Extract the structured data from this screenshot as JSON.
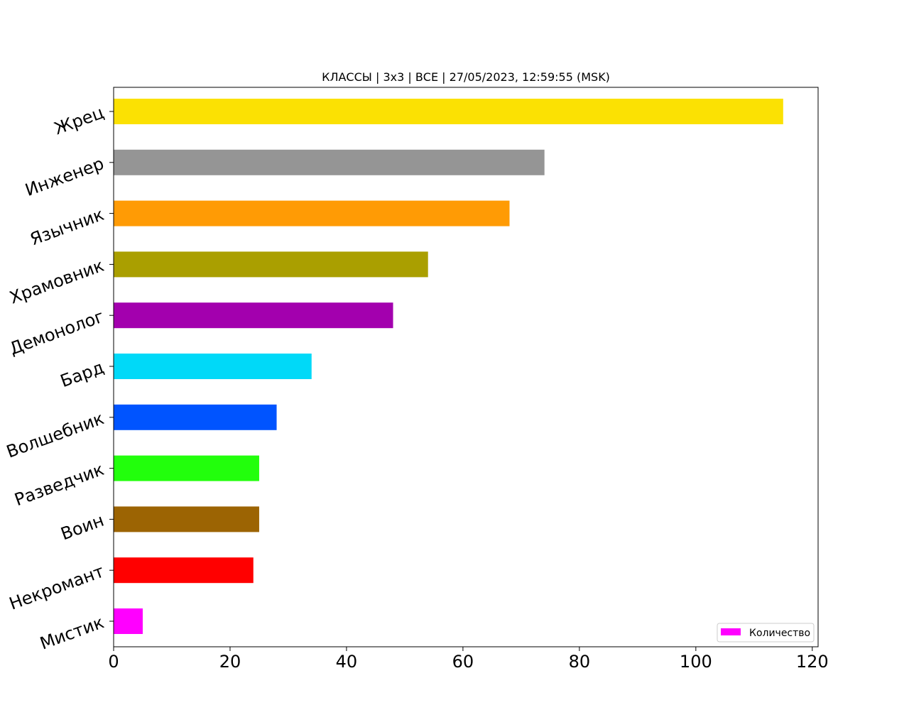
{
  "chart_data": {
    "type": "bar",
    "orientation": "horizontal",
    "title": "КЛАССЫ | 3x3 | ВСЕ | 27/05/2023, 12:59:55 (MSK)",
    "xlabel": "",
    "ylabel": "",
    "xlim": [
      0,
      121
    ],
    "xticks": [
      0,
      20,
      40,
      60,
      80,
      100,
      120
    ],
    "grid": false,
    "legend_position": "lower-right",
    "categories": [
      "Мистик",
      "Некромант",
      "Воин",
      "Разведчик",
      "Волшебник",
      "Бард",
      "Демонолог",
      "Храмовник",
      "Язычник",
      "Инженер",
      "Жрец"
    ],
    "series": [
      {
        "name": "Количество",
        "values": [
          5,
          24,
          25,
          25,
          28,
          34,
          48,
          54,
          68,
          74,
          115
        ],
        "colors": [
          "#ff00ff",
          "#ff0000",
          "#9c6403",
          "#22ff0c",
          "#0054ff",
          "#00d9f8",
          "#a300ae",
          "#aa9f00",
          "#ff9b05",
          "#959595",
          "#fbe103"
        ]
      }
    ]
  }
}
